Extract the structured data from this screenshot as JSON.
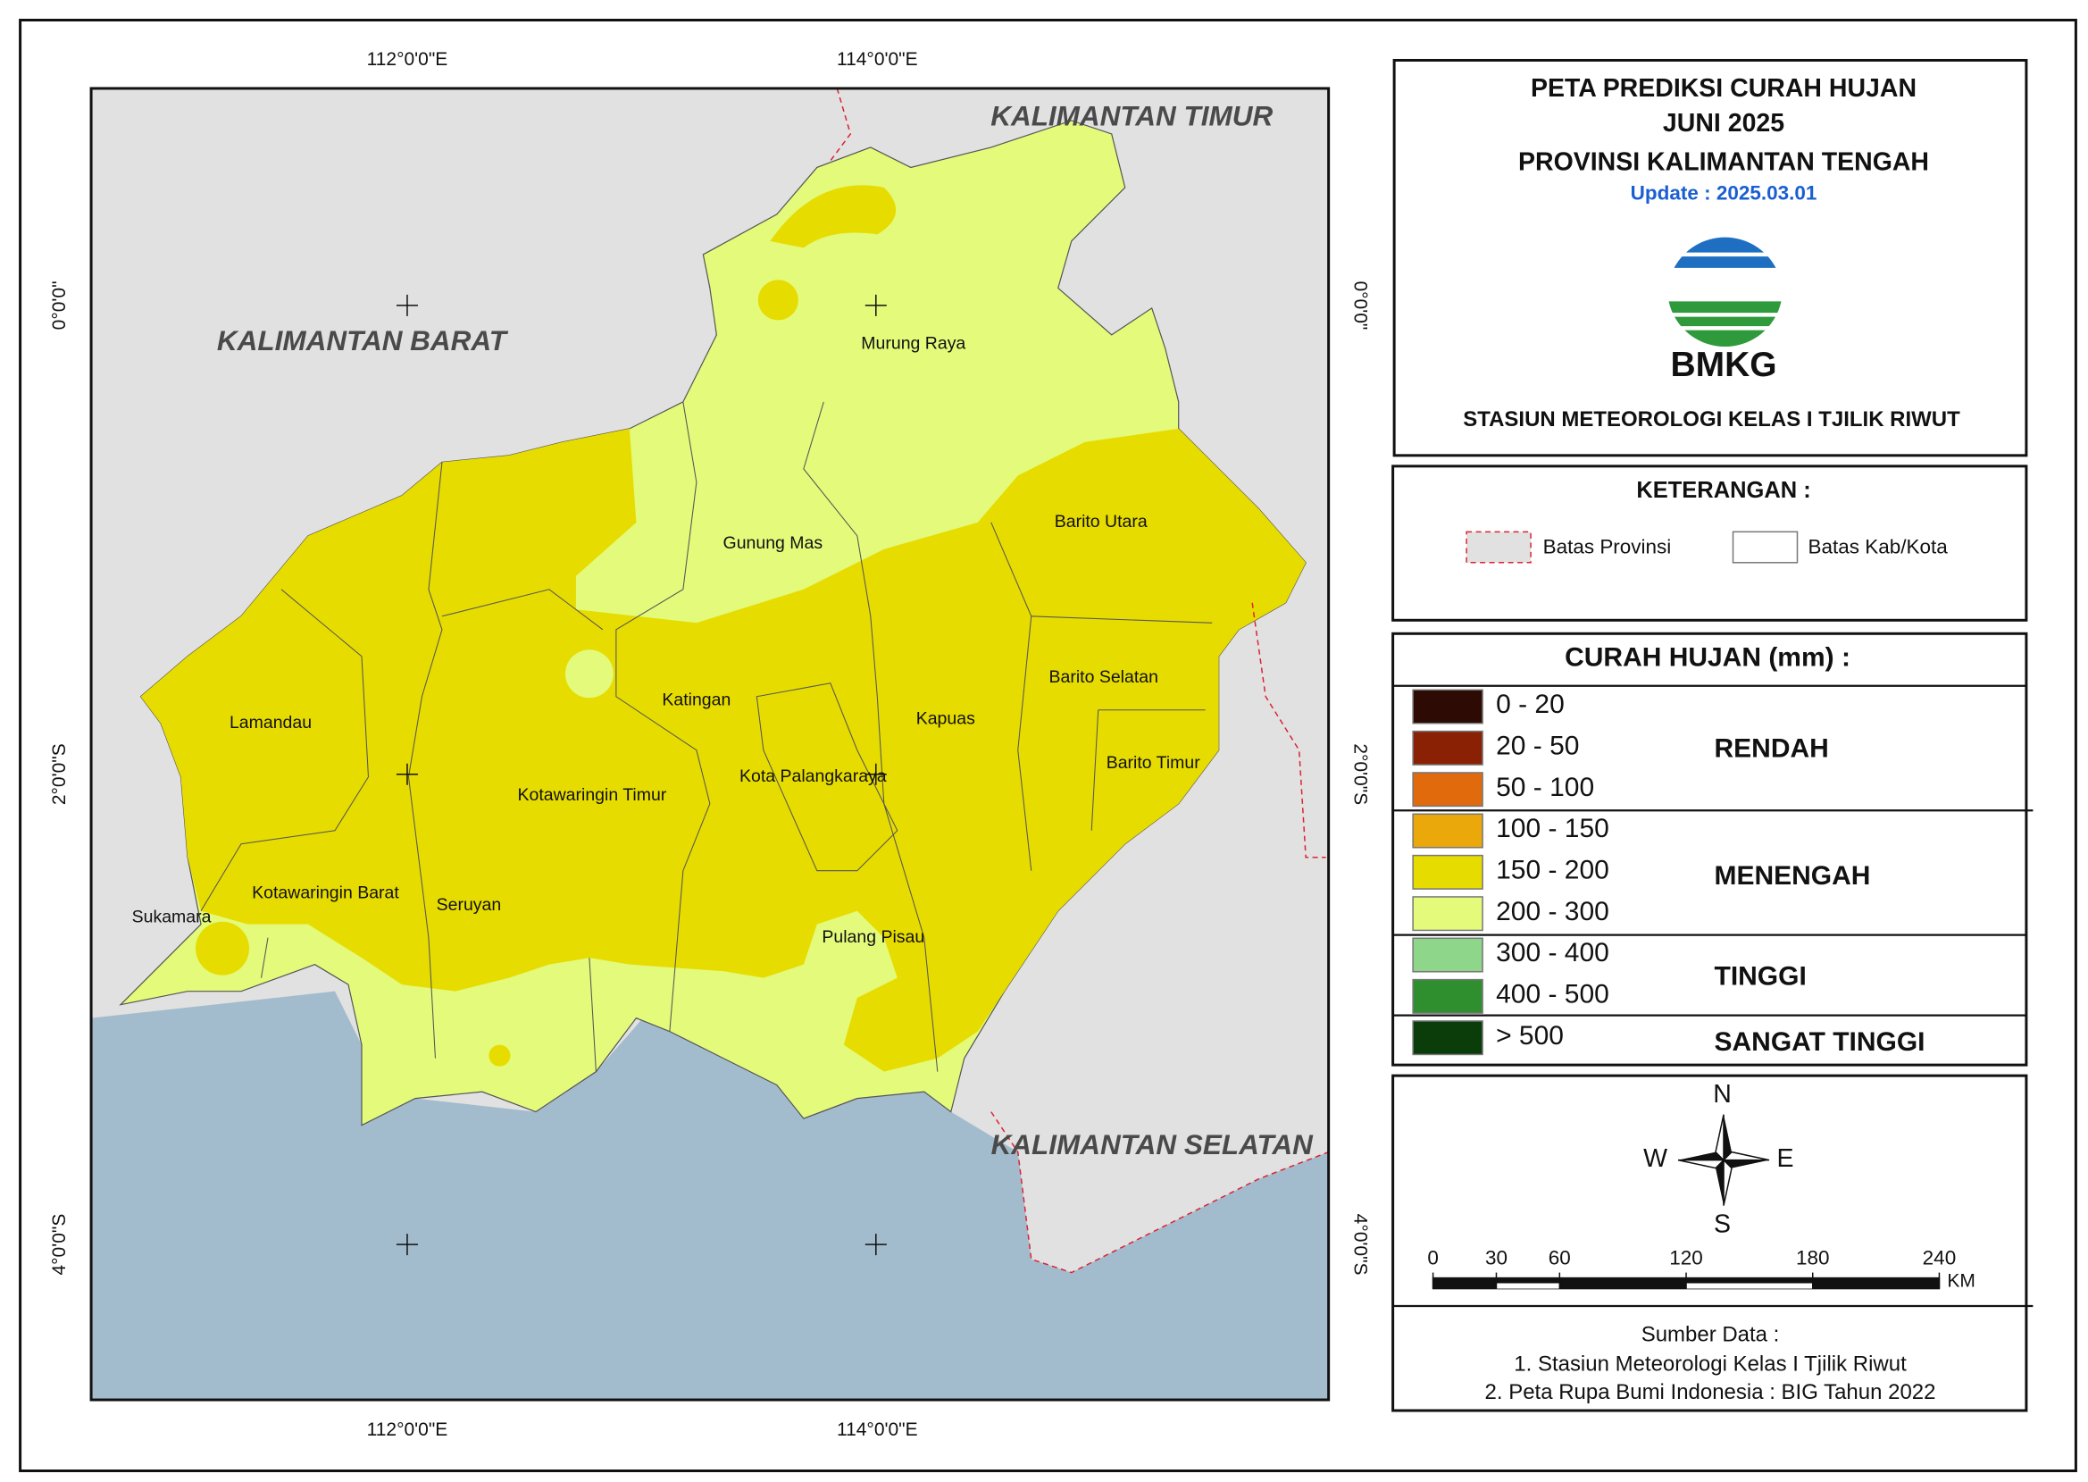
{
  "header": {
    "title_lines": [
      "PETA PREDIKSI CURAH HUJAN",
      "JUNI 2025",
      "PROVINSI KALIMANTAN TENGAH"
    ],
    "update": "Update : 2025.03.01",
    "logo_text": "BMKG",
    "station": "STASIUN METEOROLOGI KELAS I TJILIK RIWUT"
  },
  "map": {
    "lon_labels": [
      "112°0'0\"E",
      "114°0'0\"E"
    ],
    "lat_labels": [
      "0°0'0\"",
      "2°0'0\"S",
      "4°0'0\"S"
    ],
    "neighbors": [
      "KALIMANTAN TIMUR",
      "KALIMANTAN BARAT",
      "KALIMANTAN SELATAN"
    ],
    "regencies": [
      "Murung Raya",
      "Gunung Mas",
      "Barito Utara",
      "Lamandau",
      "Katingan",
      "Kapuas",
      "Barito Selatan",
      "Barito Timur",
      "Kota Palangkaraya",
      "Kotawaringin Timur",
      "Kotawaringin Barat",
      "Seruyan",
      "Sukamara",
      "Pulang Pisau"
    ]
  },
  "legend": {
    "title": "KETERANGAN :",
    "items": [
      "Batas Provinsi",
      "Batas Kab/Kota"
    ]
  },
  "rainfall": {
    "title": "CURAH HUJAN (mm) :",
    "classes": [
      {
        "label": "0 - 20",
        "color": "#2e0a05"
      },
      {
        "label": "20 - 50",
        "color": "#8a2004"
      },
      {
        "label": "50 - 100",
        "color": "#e06a0c"
      },
      {
        "label": "100 - 150",
        "color": "#eba80a"
      },
      {
        "label": "150  - 200",
        "color": "#e7dc00"
      },
      {
        "label": "200 - 300",
        "color": "#e3fa7a"
      },
      {
        "label": "300 - 400",
        "color": "#8ed68a"
      },
      {
        "label": "400 - 500",
        "color": "#2f8f2f"
      },
      {
        "label": "> 500",
        "color": "#0a3d0a"
      }
    ],
    "groups": [
      "RENDAH",
      "MENENGAH",
      "TINGGI",
      "SANGAT TINGGI"
    ]
  },
  "compass": {
    "n": "N",
    "e": "E",
    "s": "S",
    "w": "W"
  },
  "scale_bar": {
    "ticks": [
      0,
      30,
      60,
      120,
      180,
      240
    ],
    "unit": "KM"
  },
  "sources": {
    "title": "Sumber Data :",
    "items": [
      "1. Stasiun Meteorologi Kelas I Tjilik Riwut",
      "2. Peta Rupa Bumi Indonesia : BIG Tahun 2022"
    ]
  }
}
